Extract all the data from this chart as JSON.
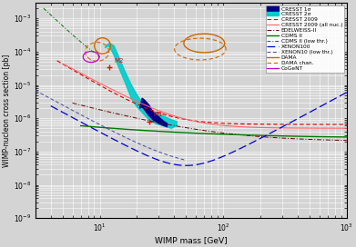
{
  "xlabel": "WIMP mass [GeV]",
  "ylabel": "WIMP-nucleon cross section [pb]",
  "xlim": [
    3,
    1000
  ],
  "ylim": [
    1e-09,
    0.003
  ],
  "M1": [
    25,
    8e-07
  ],
  "M2": [
    12,
    3.5e-05
  ],
  "bg_color": "#d4d4d4",
  "grid_color": "#ffffff"
}
